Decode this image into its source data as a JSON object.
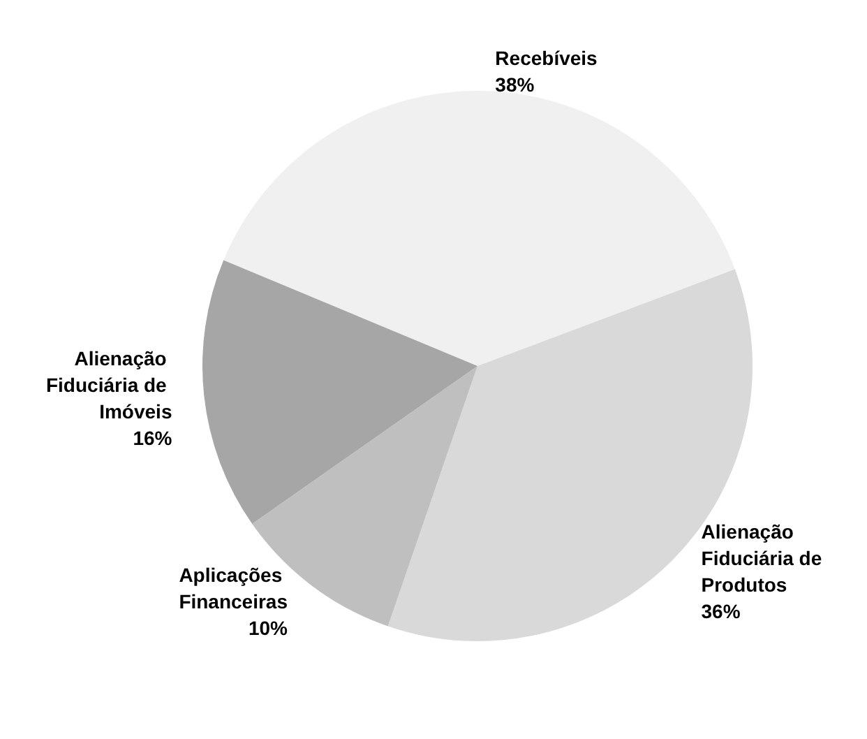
{
  "chart_data": {
    "type": "pie",
    "categories": [
      "Recebíveis",
      "Alienação Fiduciária de Produtos",
      "Aplicações Financeiras",
      "Alienação Fiduciária de Imóveis"
    ],
    "values": [
      38,
      36,
      10,
      16
    ],
    "colors": [
      "#f0f0f0",
      "#d9d9d9",
      "#bfbfbf",
      "#a6a6a6"
    ],
    "value_labels": [
      "38%",
      "36%",
      "10%",
      "16%"
    ],
    "legend": false
  }
}
